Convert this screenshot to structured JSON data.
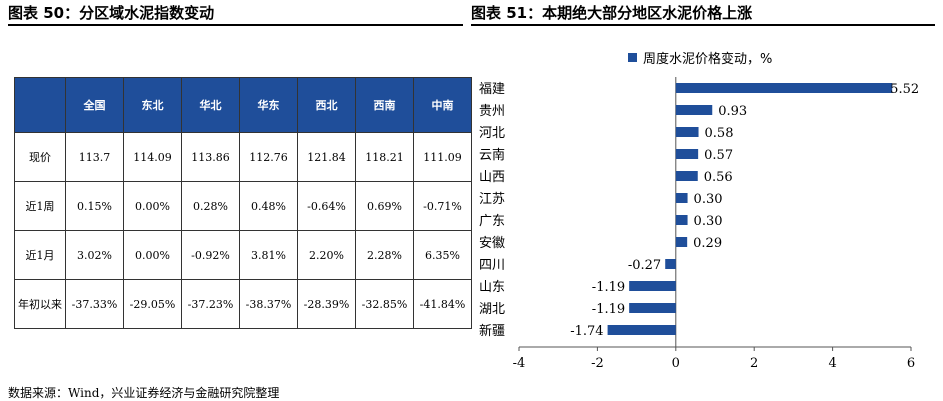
{
  "left_title": "图表 50：分区域水泥指数变动",
  "right_title": "图表 51：本期绝大部分地区水泥价格上涨",
  "table": {
    "headers": [
      "",
      "全国",
      "东北",
      "华北",
      "华东",
      "西北",
      "西南",
      "中南"
    ],
    "rows": [
      {
        "label": "现价",
        "values": [
          "113.7",
          "114.09",
          "113.86",
          "112.76",
          "121.84",
          "118.21",
          "111.09"
        ]
      },
      {
        "label": "近1周",
        "values": [
          "0.15%",
          "0.00%",
          "0.28%",
          "0.48%",
          "-0.64%",
          "0.69%",
          "-0.71%"
        ]
      },
      {
        "label": "近1月",
        "values": [
          "3.02%",
          "0.00%",
          "-0.92%",
          "3.81%",
          "2.20%",
          "2.28%",
          "6.35%"
        ]
      },
      {
        "label": "年初以来",
        "values": [
          "-37.33%",
          "-29.05%",
          "-37.23%",
          "-38.37%",
          "-28.39%",
          "-32.85%",
          "-41.84%"
        ]
      }
    ]
  },
  "chart_data": {
    "type": "bar",
    "orientation": "horizontal",
    "categories": [
      "福建",
      "贵州",
      "河北",
      "云南",
      "山西",
      "江苏",
      "广东",
      "安徽",
      "四川",
      "山东",
      "湖北",
      "新疆"
    ],
    "series": [
      {
        "name": "周度水泥价格变动，%",
        "values": [
          5.52,
          0.93,
          0.58,
          0.57,
          0.56,
          0.3,
          0.3,
          0.29,
          -0.27,
          -1.19,
          -1.19,
          -1.74
        ]
      }
    ],
    "value_labels": [
      "5.52",
      "0.93",
      "0.58",
      "0.57",
      "0.56",
      "0.30",
      "0.30",
      "0.29",
      "-0.27",
      "-1.19",
      "-1.19",
      "-1.74"
    ],
    "xlim": [
      -4,
      6
    ],
    "xticks": [
      "-4",
      "-2",
      "0",
      "2",
      "4",
      "6"
    ],
    "legend_position": "top",
    "bar_color": "#1f4e9a"
  },
  "source": "数据来源：Wind，兴业证券经济与金融研究院整理"
}
